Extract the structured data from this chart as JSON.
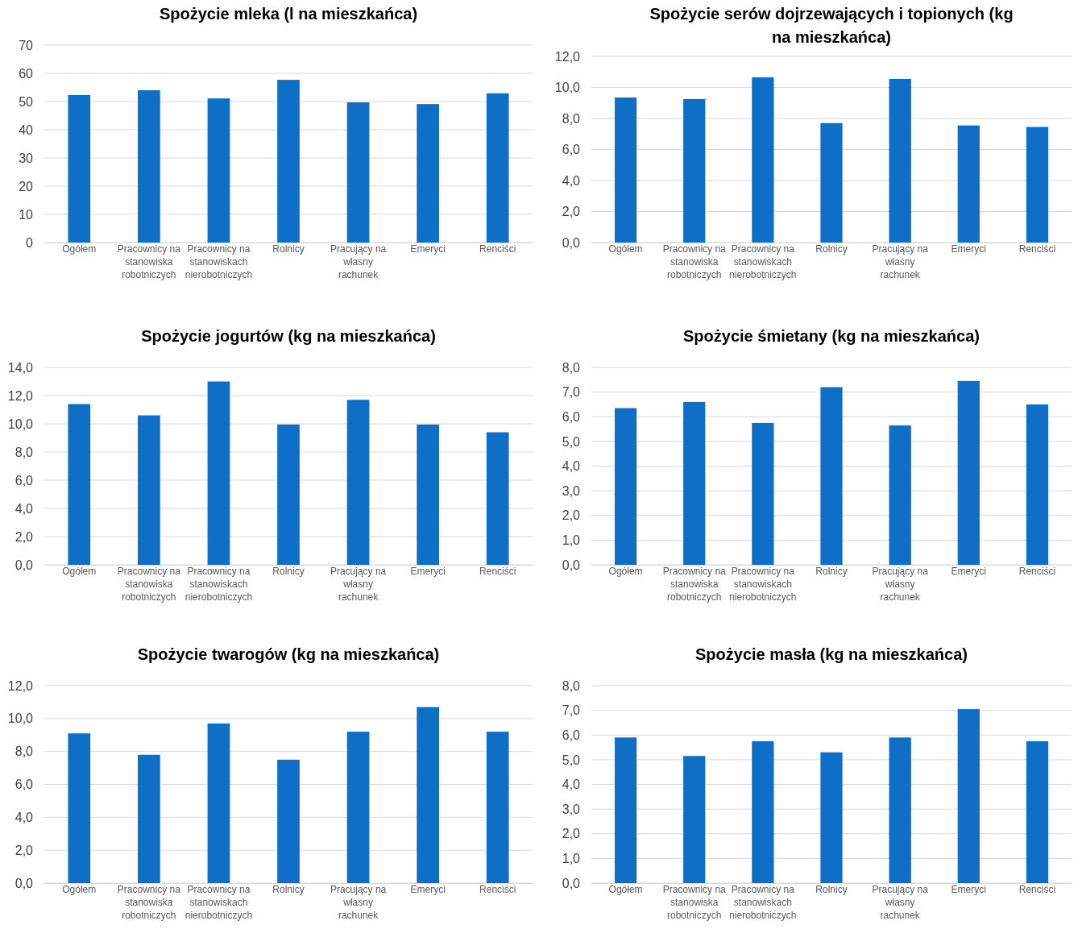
{
  "chart_data": [
    {
      "type": "bar",
      "title": "Spożycie mleka (l na mieszkańca)",
      "categories": [
        "Ogółem",
        "Pracownicy na stanowiska robotniczych",
        "Pracownicy na stanowiskach nierobotniczych",
        "Rolnicy",
        "Pracujący na własny rachunek",
        "Emeryci",
        "Renciści"
      ],
      "values": [
        52.3,
        54.0,
        51.1,
        57.7,
        49.7,
        49.1,
        52.9
      ],
      "color": "#0f6fc6",
      "ylim": [
        0,
        70
      ],
      "yticks": [
        0,
        10,
        20,
        30,
        40,
        50,
        60,
        70
      ],
      "grid": "y"
    },
    {
      "type": "bar",
      "title": "Spożycie serów dojrzewających i topionych (kg na mieszkańca)",
      "categories": [
        "Ogółem",
        "Pracownicy na stanowiska robotniczych",
        "Pracownicy na stanowiskach nierobotniczych",
        "Rolnicy",
        "Pracujący na własny rachunek",
        "Emeryci",
        "Renciści"
      ],
      "values": [
        9.35,
        9.25,
        10.65,
        7.7,
        10.55,
        7.55,
        7.45
      ],
      "color": "#0f6fc6",
      "ylim": [
        0,
        12
      ],
      "yticks": [
        {
          "value": 0,
          "label": "0,0"
        },
        {
          "value": 2,
          "label": "2,0"
        },
        {
          "value": 4,
          "label": "4,0"
        },
        {
          "value": 6,
          "label": "6,0"
        },
        {
          "value": 8,
          "label": "8,0"
        },
        {
          "value": 10,
          "label": "10,0"
        },
        {
          "value": 12,
          "label": "12,0"
        }
      ],
      "grid": "y"
    },
    {
      "type": "bar",
      "title": "Spożycie jogurtów (kg na mieszkańca)",
      "categories": [
        "Ogółem",
        "Pracownicy na stanowiska robotniczych",
        "Pracownicy na stanowiskach nierobotniczych",
        "Rolnicy",
        "Pracujący na własny rachunek",
        "Emeryci",
        "Renciści"
      ],
      "values": [
        11.4,
        10.6,
        13.0,
        9.95,
        11.7,
        9.95,
        9.4
      ],
      "color": "#0f6fc6",
      "ylim": [
        0,
        14
      ],
      "yticks": [
        {
          "value": 0,
          "label": "0,0"
        },
        {
          "value": 2,
          "label": "2,0"
        },
        {
          "value": 4,
          "label": "4,0"
        },
        {
          "value": 6,
          "label": "6,0"
        },
        {
          "value": 8,
          "label": "8,0"
        },
        {
          "value": 10,
          "label": "10,0"
        },
        {
          "value": 12,
          "label": "12,0"
        },
        {
          "value": 14,
          "label": "14,0"
        }
      ],
      "grid": "y"
    },
    {
      "type": "bar",
      "title": "Spożycie śmietany (kg na mieszkańca)",
      "categories": [
        "Ogółem",
        "Pracownicy na stanowiska robotniczych",
        "Pracownicy na stanowiskach nierobotniczych",
        "Rolnicy",
        "Pracujący na własny rachunek",
        "Emeryci",
        "Renciści"
      ],
      "values": [
        6.35,
        6.6,
        5.75,
        7.2,
        5.65,
        7.45,
        6.5
      ],
      "color": "#0f6fc6",
      "ylim": [
        0,
        8
      ],
      "yticks": [
        {
          "value": 0,
          "label": "0,0"
        },
        {
          "value": 1,
          "label": "1,0"
        },
        {
          "value": 2,
          "label": "2,0"
        },
        {
          "value": 3,
          "label": "3,0"
        },
        {
          "value": 4,
          "label": "4,0"
        },
        {
          "value": 5,
          "label": "5,0"
        },
        {
          "value": 6,
          "label": "6,0"
        },
        {
          "value": 7,
          "label": "7,0"
        },
        {
          "value": 8,
          "label": "8,0"
        }
      ],
      "grid": "y"
    },
    {
      "type": "bar",
      "title": "Spożycie twarogów (kg na mieszkańca)",
      "categories": [
        "Ogółem",
        "Pracownicy na stanowiska robotniczych",
        "Pracownicy na stanowiskach nierobotniczych",
        "Rolnicy",
        "Pracujący na własny rachunek",
        "Emeryci",
        "Renciści"
      ],
      "values": [
        9.1,
        7.8,
        9.7,
        7.5,
        9.2,
        10.7,
        9.2
      ],
      "color": "#0f6fc6",
      "ylim": [
        0,
        12
      ],
      "yticks": [
        {
          "value": 0,
          "label": "0,0"
        },
        {
          "value": 2,
          "label": "2,0"
        },
        {
          "value": 4,
          "label": "4,0"
        },
        {
          "value": 6,
          "label": "6,0"
        },
        {
          "value": 8,
          "label": "8,0"
        },
        {
          "value": 10,
          "label": "10,0"
        },
        {
          "value": 12,
          "label": "12,0"
        }
      ],
      "grid": "y"
    },
    {
      "type": "bar",
      "title": "Spożycie masła (kg na mieszkańca)",
      "categories": [
        "Ogółem",
        "Pracownicy na stanowiska robotniczych",
        "Pracownicy na stanowiskach nierobotniczych",
        "Rolnicy",
        "Pracujący na własny rachunek",
        "Emeryci",
        "Renciści"
      ],
      "values": [
        5.9,
        5.15,
        5.75,
        5.3,
        5.9,
        7.05,
        5.75
      ],
      "color": "#0f6fc6",
      "ylim": [
        0,
        8
      ],
      "yticks": [
        {
          "value": 0,
          "label": "0,0"
        },
        {
          "value": 1,
          "label": "1,0"
        },
        {
          "value": 2,
          "label": "2,0"
        },
        {
          "value": 3,
          "label": "3,0"
        },
        {
          "value": 4,
          "label": "4,0"
        },
        {
          "value": 5,
          "label": "5,0"
        },
        {
          "value": 6,
          "label": "6,0"
        },
        {
          "value": 7,
          "label": "7,0"
        },
        {
          "value": 8,
          "label": "8,0"
        }
      ],
      "grid": "y"
    }
  ]
}
